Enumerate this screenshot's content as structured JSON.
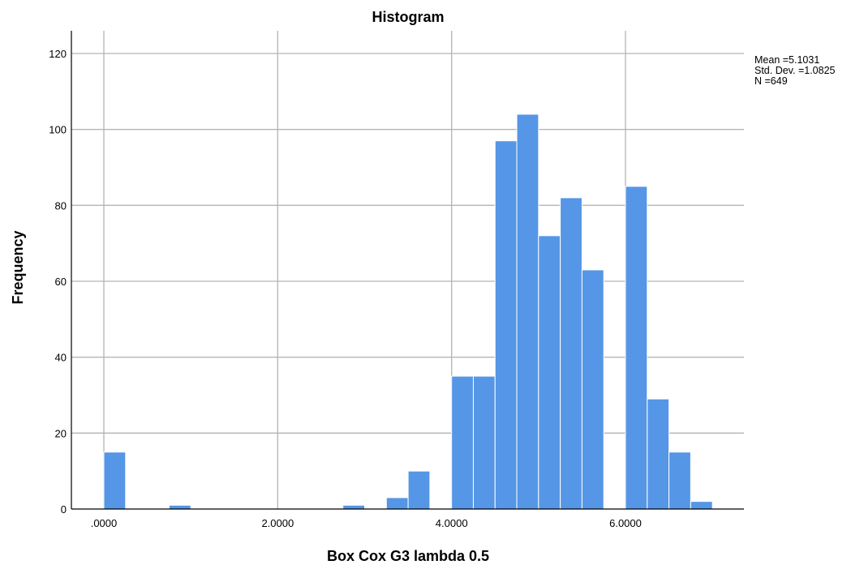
{
  "chart_data": {
    "type": "bar",
    "title": "Histogram",
    "xlabel": "Box Cox G3 lambda 0.5",
    "ylabel": "Frequency",
    "xlim": [
      -0.1,
      7.7
    ],
    "ylim": [
      0,
      125
    ],
    "x_ticks": [
      0,
      2,
      4,
      6
    ],
    "x_tick_labels": [
      ".0000",
      "2.0000",
      "4.0000",
      "6.0000"
    ],
    "y_ticks": [
      0,
      20,
      40,
      60,
      80,
      100,
      120
    ],
    "y_tick_labels": [
      "0",
      "20",
      "40",
      "60",
      "80",
      "100",
      "120"
    ],
    "bin_width": 0.25,
    "bins": [
      {
        "start": 0.0,
        "count": 15
      },
      {
        "start": 0.75,
        "count": 1
      },
      {
        "start": 2.75,
        "count": 1
      },
      {
        "start": 3.25,
        "count": 3
      },
      {
        "start": 3.5,
        "count": 10
      },
      {
        "start": 4.0,
        "count": 35
      },
      {
        "start": 4.25,
        "count": 35
      },
      {
        "start": 4.5,
        "count": 97
      },
      {
        "start": 4.75,
        "count": 104
      },
      {
        "start": 5.0,
        "count": 72
      },
      {
        "start": 5.25,
        "count": 82
      },
      {
        "start": 5.5,
        "count": 63
      },
      {
        "start": 6.0,
        "count": 85
      },
      {
        "start": 6.25,
        "count": 29
      },
      {
        "start": 6.5,
        "count": 15
      },
      {
        "start": 6.75,
        "count": 2
      }
    ],
    "grid": true,
    "bar_color": "#5596e6",
    "stats": {
      "mean": "Mean =5.1031",
      "std_dev": "Std. Dev. =1.0825",
      "n": "N =649"
    }
  }
}
